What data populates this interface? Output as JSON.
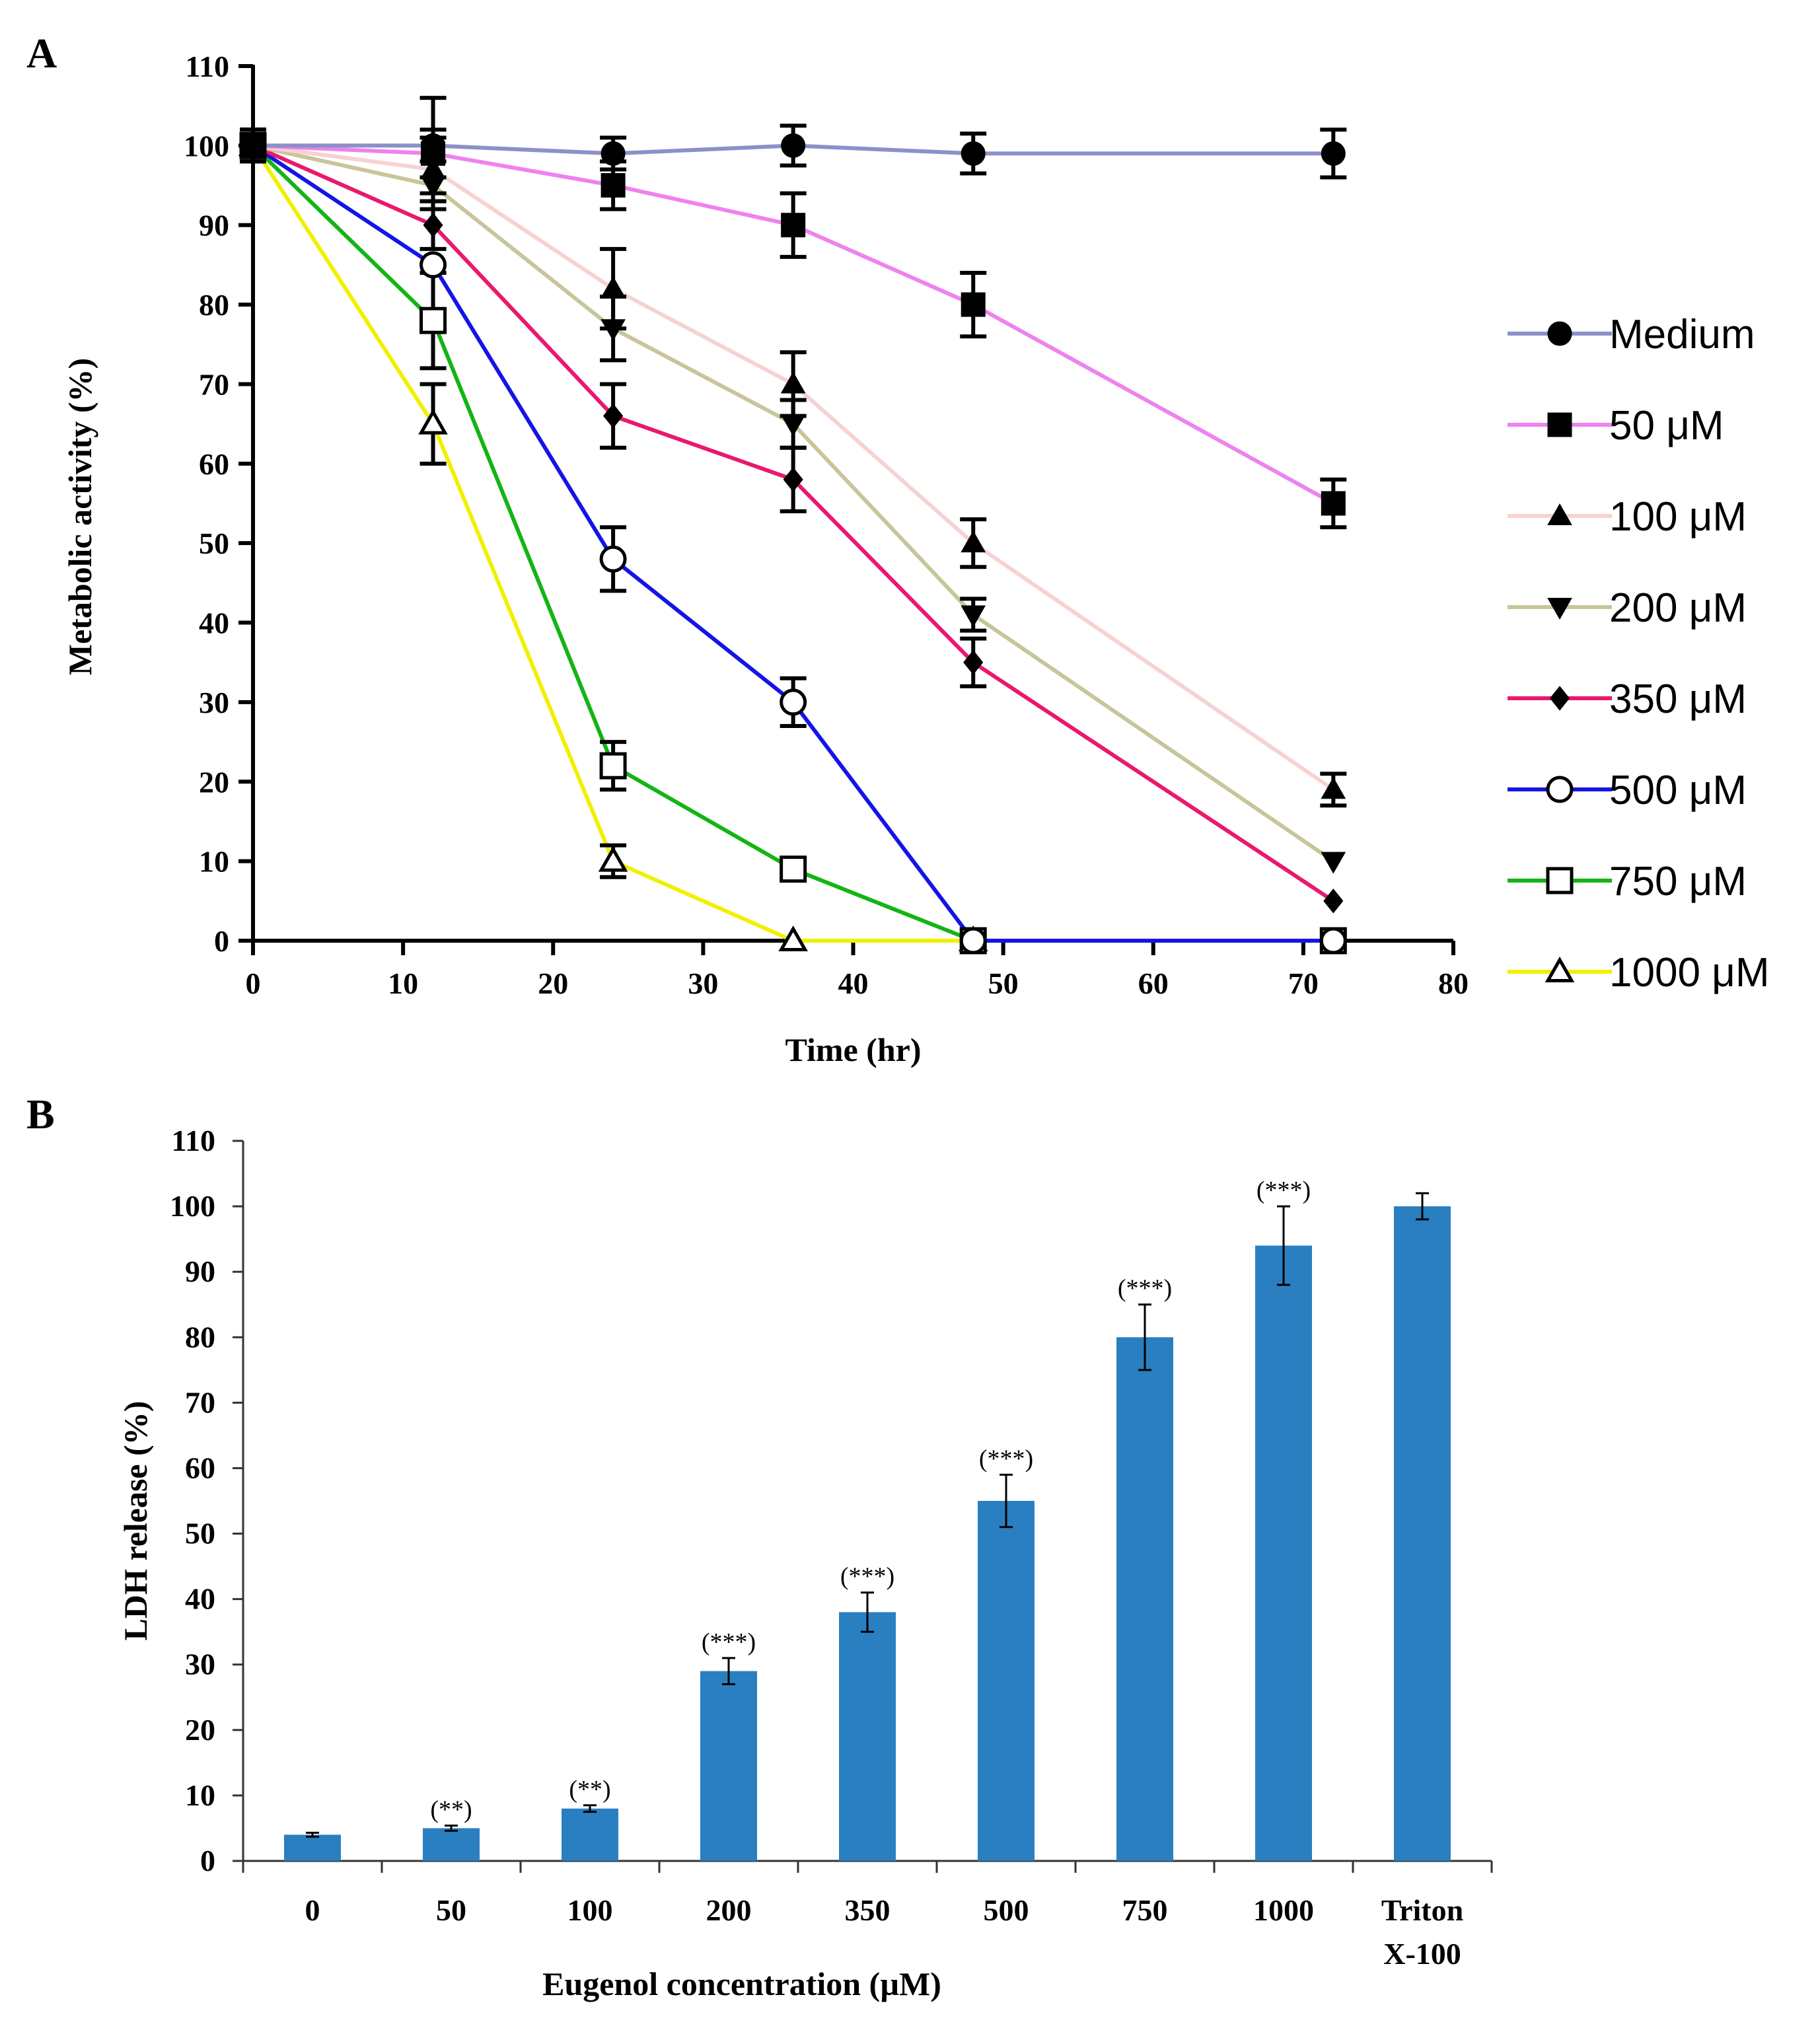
{
  "chart_data": [
    {
      "panel": "A",
      "type": "line",
      "title": "",
      "xlabel": "Time (hr)",
      "ylabel": "Metabolic activity (%)",
      "xlim": [
        0,
        80
      ],
      "ylim": [
        0,
        110
      ],
      "xticks": [
        "0",
        "10",
        "20",
        "30",
        "40",
        "50",
        "60",
        "70",
        "80"
      ],
      "yticks": [
        "0",
        "10",
        "20",
        "30",
        "40",
        "50",
        "60",
        "70",
        "80",
        "90",
        "100",
        "110"
      ],
      "x": [
        0,
        12,
        24,
        36,
        48,
        72
      ],
      "series": [
        {
          "name": "Medium",
          "color": "#8c90c8",
          "marker": "circle-filled",
          "values": [
            100,
            100,
            99,
            100,
            99,
            99
          ],
          "errors": [
            2,
            6,
            2,
            2.5,
            2.5,
            3
          ]
        },
        {
          "name": "50 μM",
          "color": "#ee82ee",
          "marker": "square-filled",
          "values": [
            100,
            99,
            95,
            90,
            80,
            55
          ],
          "errors": [
            2,
            3,
            3,
            4,
            4,
            3
          ]
        },
        {
          "name": "100 μM",
          "color": "#f7d2d2",
          "marker": "triangle-up-filled",
          "values": [
            100,
            97,
            82,
            70,
            50,
            19
          ],
          "errors": [
            2,
            4,
            5,
            4,
            3,
            2
          ]
        },
        {
          "name": "200 μM",
          "color": "#c8c59a",
          "marker": "triangle-down-filled",
          "values": [
            100,
            95,
            77,
            65,
            41,
            10
          ],
          "errors": [
            2,
            3,
            4,
            3,
            2,
            0
          ]
        },
        {
          "name": "350 μM",
          "color": "#e8196e",
          "marker": "diamond-filled",
          "values": [
            100,
            90,
            66,
            58,
            35,
            5
          ],
          "errors": [
            2,
            3,
            4,
            4,
            3,
            0
          ]
        },
        {
          "name": "500 μM",
          "color": "#1414e6",
          "marker": "circle-open",
          "values": [
            100,
            85,
            48,
            30,
            0,
            0
          ],
          "errors": [
            2,
            0,
            4,
            3,
            0,
            0
          ]
        },
        {
          "name": "750 μM",
          "color": "#14b414",
          "marker": "square-open",
          "values": [
            100,
            78,
            22,
            9,
            0,
            0
          ],
          "errors": [
            2,
            6,
            3,
            0,
            0,
            0
          ]
        },
        {
          "name": "1000 μM",
          "color": "#f0f000",
          "marker": "triangle-up-open",
          "values": [
            100,
            65,
            10,
            0,
            0,
            null
          ],
          "errors": [
            2,
            5,
            2,
            0,
            0,
            0
          ]
        }
      ],
      "legend": "right"
    },
    {
      "panel": "B",
      "type": "bar",
      "title": "",
      "xlabel": "Eugenol concentration (µM)",
      "ylabel": "LDH release (%)",
      "ylim": [
        0,
        110
      ],
      "yticks": [
        "0",
        "10",
        "20",
        "30",
        "40",
        "50",
        "60",
        "70",
        "80",
        "90",
        "100",
        "110"
      ],
      "categories": [
        "0",
        "50",
        "100",
        "200",
        "350",
        "500",
        "750",
        "1000",
        "Triton X-100"
      ],
      "category_lines": [
        [
          "0"
        ],
        [
          "50"
        ],
        [
          "100"
        ],
        [
          "200"
        ],
        [
          "350"
        ],
        [
          "500"
        ],
        [
          "750"
        ],
        [
          "1000"
        ],
        [
          "Triton",
          "X-100"
        ]
      ],
      "values": [
        4,
        5,
        8,
        29,
        38,
        55,
        80,
        94,
        100
      ],
      "errors": [
        0.3,
        0.4,
        0.5,
        2,
        3,
        4,
        5,
        6,
        2
      ],
      "significance": [
        "",
        "(**)",
        "(**)",
        "(***)",
        "(***)",
        "(***)",
        "(***)",
        "(***)",
        ""
      ],
      "bar_color": "#2a7fc0"
    }
  ],
  "labels": {
    "panel_a": "A",
    "panel_b": "B"
  }
}
